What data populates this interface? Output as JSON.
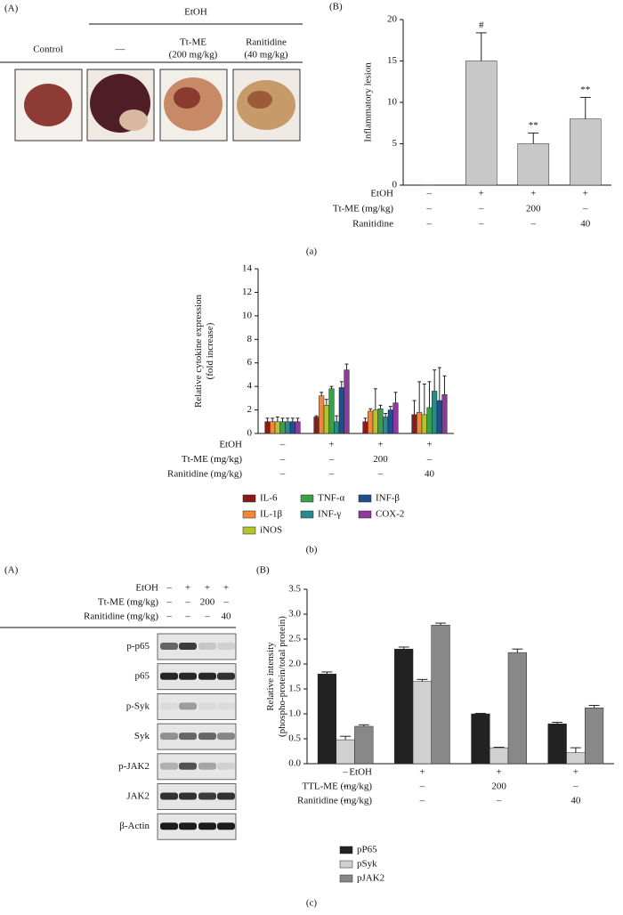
{
  "photo_panel": {
    "panel_label": "(A)",
    "group_label": "EtOH",
    "columns": [
      [
        "Control"
      ],
      [
        "—"
      ],
      [
        "Tt-ME",
        "(200 mg/kg)"
      ],
      [
        "Ranitidine",
        "(40 mg/kg)"
      ]
    ]
  },
  "blot_panel": {
    "panel_label": "(A)",
    "conditions": [
      {
        "label": "EtOH",
        "values": [
          "–",
          "+",
          "+",
          "+"
        ]
      },
      {
        "label": "Tt-ME (mg/kg)",
        "values": [
          "–",
          "–",
          "200",
          "–"
        ]
      },
      {
        "label": "Ranitidine (mg/kg)",
        "values": [
          "–",
          "–",
          "–",
          "40"
        ]
      }
    ],
    "rows": [
      "p-p65",
      "p65",
      "p-Syk",
      "Syk",
      "p-JAK2",
      "JAK2",
      "β-Actin"
    ]
  },
  "chart_data": [
    {
      "type": "bar",
      "panel_label": "(B)",
      "caption": "(a)",
      "ylabel": [
        "Inflammatory lesion"
      ],
      "ylim": [
        0,
        20
      ],
      "yticks": [
        0,
        5,
        10,
        15,
        20
      ],
      "series": [
        {
          "color": "#c8c8c8",
          "values": [
            0,
            15,
            5,
            8
          ],
          "errors": [
            0,
            3.4,
            1.3,
            2.6
          ]
        }
      ],
      "markers": [
        null,
        "#",
        "**",
        "**"
      ],
      "conditions": [
        {
          "label": "EtOH",
          "values": [
            "–",
            "+",
            "+",
            "+"
          ]
        },
        {
          "label": "Tt-ME (mg/kg)",
          "values": [
            "–",
            "–",
            "200",
            "–"
          ]
        },
        {
          "label": "Ranitidine",
          "values": [
            "–",
            "–",
            "–",
            "40"
          ]
        }
      ]
    },
    {
      "type": "bar",
      "caption": "(b)",
      "ylabel": [
        "Relative cytokine expression",
        "(fold increase)"
      ],
      "ylim": [
        0,
        14
      ],
      "yticks": [
        0,
        2,
        4,
        6,
        8,
        10,
        12,
        14
      ],
      "series": [
        {
          "name": "IL-6",
          "color": "#8b1a1a",
          "values": [
            1.0,
            1.4,
            1.0,
            1.6
          ],
          "errors": [
            0.3,
            0.1,
            0.3,
            1.2
          ]
        },
        {
          "name": "IL-1β",
          "color": "#f0883a",
          "values": [
            1.0,
            3.2,
            1.9,
            1.8
          ],
          "errors": [
            0.3,
            0.3,
            0.2,
            2.6
          ]
        },
        {
          "name": "iNOS",
          "color": "#b5c22e",
          "values": [
            1.0,
            2.4,
            2.0,
            1.6
          ],
          "errors": [
            0.4,
            0.5,
            1.8,
            2.6
          ]
        },
        {
          "name": "TNF-α",
          "color": "#3b9e4a",
          "values": [
            1.0,
            3.8,
            2.1,
            2.2
          ],
          "errors": [
            0.3,
            0.2,
            0.3,
            2.2
          ]
        },
        {
          "name": "INF-γ",
          "color": "#2a8a8a",
          "values": [
            1.0,
            1.0,
            1.4,
            3.6
          ],
          "errors": [
            0.3,
            0.5,
            0.3,
            1.8
          ]
        },
        {
          "name": "INF-β",
          "color": "#1f4f8f",
          "values": [
            1.0,
            3.9,
            2.0,
            2.8
          ],
          "errors": [
            0.3,
            0.5,
            0.3,
            2.8
          ]
        },
        {
          "name": "COX-2",
          "color": "#8e3a9c",
          "values": [
            1.0,
            5.4,
            2.6,
            3.3
          ],
          "errors": [
            0.3,
            0.5,
            0.9,
            1.6
          ]
        }
      ],
      "conditions": [
        {
          "label": "EtOH",
          "values": [
            "–",
            "+",
            "+",
            "+"
          ]
        },
        {
          "label": "Tt-ME (mg/kg)",
          "values": [
            "–",
            "–",
            "200",
            "–"
          ]
        },
        {
          "label": "Ranitidine (mg/kg)",
          "values": [
            "–",
            "–",
            "–",
            "40"
          ]
        }
      ]
    },
    {
      "type": "bar",
      "panel_label": "(B)",
      "caption": "(c)",
      "ylabel": [
        "Relative intensity",
        "(phospho-protein/total protein)"
      ],
      "ylim": [
        0,
        3.5
      ],
      "yticks": [
        {
          "value": 0,
          "label": "0.0"
        },
        0.5,
        {
          "value": 1,
          "label": "1.0"
        },
        1.5,
        {
          "value": 2,
          "label": "2.0"
        },
        2.5,
        {
          "value": 3,
          "label": "3.0"
        },
        3.5
      ],
      "series": [
        {
          "name": "pP65",
          "color": "#222222",
          "values": [
            1.8,
            2.3,
            1.0,
            0.8
          ],
          "errors": [
            0.04,
            0.04,
            0.01,
            0.03
          ]
        },
        {
          "name": "pSyk",
          "color": "#d0d0d0",
          "values": [
            0.48,
            1.65,
            0.32,
            0.22
          ],
          "errors": [
            0.07,
            0.04,
            0.01,
            0.1
          ]
        },
        {
          "name": "pJAK2",
          "color": "#888888",
          "values": [
            0.75,
            2.78,
            2.23,
            1.12
          ],
          "errors": [
            0.03,
            0.04,
            0.07,
            0.05
          ]
        }
      ],
      "conditions": [
        {
          "label": "EtOH",
          "values": [
            "–",
            "+",
            "+",
            "+"
          ]
        },
        {
          "label": "TTL-ME (mg/kg)",
          "values": [
            "–",
            "–",
            "200",
            "–"
          ]
        },
        {
          "label": "Ranitidine (mg/kg)",
          "values": [
            "–",
            "–",
            "–",
            "40"
          ]
        }
      ]
    }
  ]
}
